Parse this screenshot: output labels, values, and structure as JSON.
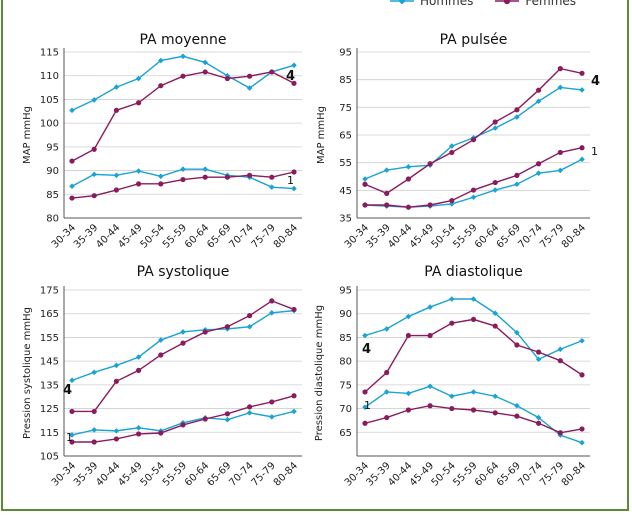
{
  "legend": {
    "hommes": "Hommes",
    "femmes": "Femmes",
    "hommes_color": "#1aa3d4",
    "femmes_color": "#8a1c5e"
  },
  "chart_data": [
    {
      "type": "line",
      "title": "PA moyenne",
      "ylabel": "MAP mmHg",
      "ylim": [
        80,
        115
      ],
      "yticks": [
        80,
        85,
        90,
        95,
        100,
        105,
        110,
        115
      ],
      "categories": [
        "30-34",
        "35-39",
        "40-44",
        "45-49",
        "50-54",
        "55-59",
        "60-64",
        "65-69",
        "70-74",
        "75-79",
        "80-84"
      ],
      "series": [
        {
          "name": "Hommes",
          "group": "4",
          "values": [
            102.7,
            104.9,
            107.6,
            109.4,
            113.2,
            114.1,
            112.8,
            110.0,
            107.4,
            110.8,
            112.2
          ]
        },
        {
          "name": "Femmes",
          "group": "4",
          "values": [
            92.0,
            94.5,
            102.7,
            104.3,
            107.9,
            109.9,
            110.8,
            109.4,
            109.9,
            110.8,
            108.4
          ]
        },
        {
          "name": "Hommes",
          "group": "1",
          "values": [
            86.7,
            89.2,
            89.0,
            89.9,
            88.8,
            90.3,
            90.3,
            89.0,
            88.6,
            86.5,
            86.2
          ]
        },
        {
          "name": "Femmes",
          "group": "1",
          "values": [
            84.2,
            84.7,
            85.9,
            87.2,
            87.2,
            88.1,
            88.6,
            88.6,
            89.0,
            88.6,
            89.7
          ]
        }
      ],
      "annotations": [
        "4",
        "1"
      ]
    },
    {
      "type": "line",
      "title": "PA pulsée",
      "ylabel": "MAP mmHg",
      "ylim": [
        35,
        95
      ],
      "yticks": [
        35,
        45,
        55,
        65,
        75,
        85,
        95
      ],
      "categories": [
        "30-34",
        "35-39",
        "40-44",
        "45-49",
        "50-54",
        "55-59",
        "60-64",
        "65-69",
        "70-74",
        "75-79",
        "80-84"
      ],
      "series": [
        {
          "name": "Hommes",
          "group": "4",
          "values": [
            49.1,
            52.3,
            53.5,
            54.1,
            61.0,
            64.0,
            67.5,
            71.5,
            77.2,
            82.2,
            81.3
          ]
        },
        {
          "name": "Femmes",
          "group": "4",
          "values": [
            47.2,
            43.9,
            49.1,
            54.6,
            58.7,
            63.3,
            69.7,
            74.1,
            81.2,
            89.0,
            87.3
          ]
        },
        {
          "name": "Hommes",
          "group": "1",
          "values": [
            39.7,
            39.3,
            38.9,
            39.3,
            40.1,
            42.5,
            45.1,
            47.2,
            51.2,
            52.2,
            56.2
          ]
        },
        {
          "name": "Femmes",
          "group": "1",
          "values": [
            39.7,
            39.7,
            38.9,
            39.7,
            41.3,
            45.1,
            47.8,
            50.4,
            54.6,
            58.7,
            60.4
          ]
        }
      ],
      "annotations": [
        "4",
        "1"
      ]
    },
    {
      "type": "line",
      "title": "PA systolique",
      "ylabel": "Pression systolique mmHg",
      "ylim": [
        105,
        175
      ],
      "yticks": [
        105,
        115,
        125,
        135,
        145,
        155,
        165,
        175
      ],
      "categories": [
        "30-34",
        "35-39",
        "40-44",
        "45-49",
        "50-54",
        "55-59",
        "60-64",
        "65-69",
        "70-74",
        "75-79",
        "80-84"
      ],
      "series": [
        {
          "name": "Hommes",
          "group": "4",
          "values": [
            136.9,
            140.3,
            143.2,
            146.7,
            153.9,
            157.3,
            158.2,
            158.6,
            159.5,
            165.4,
            166.3
          ]
        },
        {
          "name": "Femmes",
          "group": "4",
          "values": [
            123.8,
            123.8,
            136.5,
            141.1,
            147.6,
            152.6,
            157.3,
            159.5,
            164.2,
            170.4,
            166.8
          ]
        },
        {
          "name": "Hommes",
          "group": "1",
          "values": [
            113.9,
            116.0,
            115.6,
            116.9,
            115.6,
            119.0,
            121.1,
            120.3,
            123.2,
            121.5,
            123.8
          ]
        },
        {
          "name": "Femmes",
          "group": "1",
          "values": [
            110.9,
            110.9,
            112.2,
            114.3,
            114.7,
            118.1,
            120.6,
            122.8,
            125.7,
            127.8,
            130.4
          ]
        }
      ],
      "annotations": [
        "4",
        "1"
      ]
    },
    {
      "type": "line",
      "title": "PA diastolique",
      "ylabel": "Pression diastolique mmHg",
      "ylim": [
        60,
        95
      ],
      "yticks": [
        65,
        70,
        75,
        80,
        85,
        90,
        95
      ],
      "categories": [
        "30-34",
        "35-39",
        "40-44",
        "45-49",
        "50-54",
        "55-59",
        "60-64",
        "65-69",
        "70-74",
        "75-79",
        "80-84"
      ],
      "series": [
        {
          "name": "Hommes",
          "group": "4",
          "values": [
            85.4,
            86.8,
            89.4,
            91.4,
            93.1,
            93.1,
            90.1,
            86.0,
            80.4,
            82.5,
            84.3
          ]
        },
        {
          "name": "Femmes",
          "group": "4",
          "values": [
            73.5,
            77.6,
            85.4,
            85.4,
            88.0,
            88.8,
            87.4,
            83.4,
            81.9,
            80.1,
            77.1
          ]
        },
        {
          "name": "Hommes",
          "group": "1",
          "values": [
            70.3,
            73.5,
            73.2,
            74.7,
            72.6,
            73.5,
            72.6,
            70.6,
            68.1,
            64.4,
            62.8
          ]
        },
        {
          "name": "Femmes",
          "group": "1",
          "values": [
            66.9,
            68.1,
            69.7,
            70.6,
            70.0,
            69.7,
            69.1,
            68.4,
            66.9,
            64.9,
            65.7
          ]
        }
      ],
      "annotations": [
        "4",
        "1"
      ]
    }
  ]
}
